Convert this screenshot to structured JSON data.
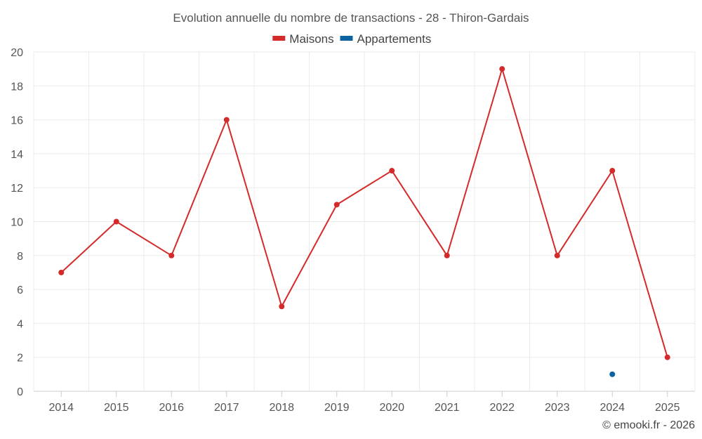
{
  "chart_data": {
    "type": "line",
    "title": "Evolution annuelle du nombre de transactions - 28 - Thiron-Gardais",
    "categories": [
      "2014",
      "2015",
      "2016",
      "2017",
      "2018",
      "2019",
      "2020",
      "2021",
      "2022",
      "2023",
      "2024",
      "2025"
    ],
    "series": [
      {
        "name": "Maisons",
        "color": "#d42a2a",
        "values": [
          7,
          10,
          8,
          16,
          5,
          11,
          13,
          8,
          19,
          8,
          13,
          2
        ]
      },
      {
        "name": "Appartements",
        "color": "#0b64a0",
        "values": [
          null,
          null,
          null,
          null,
          null,
          null,
          null,
          null,
          null,
          null,
          1,
          null
        ]
      }
    ],
    "ylim": [
      0,
      20
    ],
    "yticks": [
      0,
      2,
      4,
      6,
      8,
      10,
      12,
      14,
      16,
      18,
      20
    ],
    "xlabel": "",
    "ylabel": "",
    "legend": "top-center",
    "grid": true
  },
  "credit": "© emooki.fr - 2026"
}
